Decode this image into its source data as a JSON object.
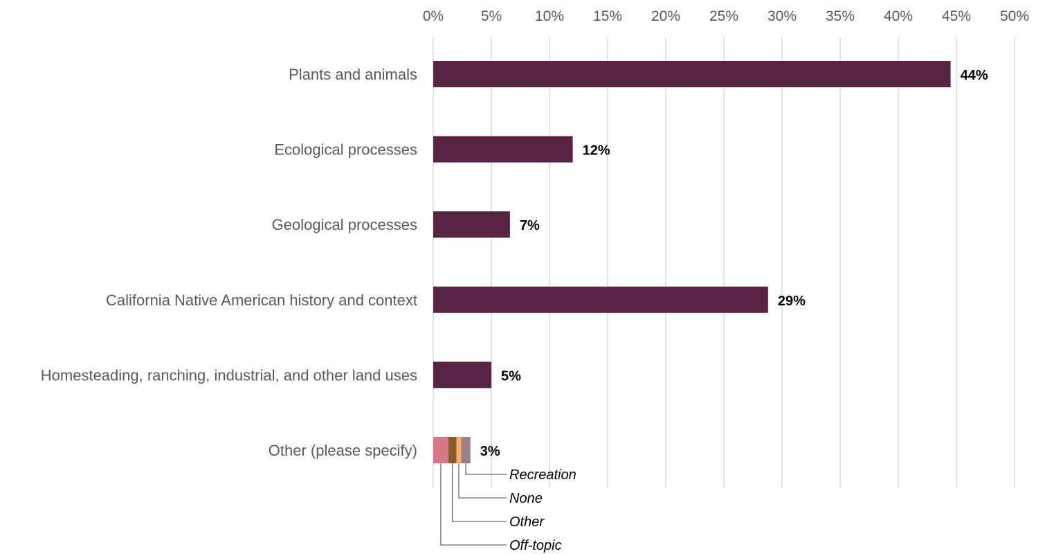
{
  "chart_data": {
    "type": "bar",
    "orientation": "horizontal",
    "title": "",
    "xlabel": "",
    "ylabel": "",
    "xlim": [
      0,
      50
    ],
    "x_ticks": [
      0,
      5,
      10,
      15,
      20,
      25,
      30,
      35,
      40,
      45,
      50
    ],
    "x_tick_labels": [
      "0%",
      "5%",
      "10%",
      "15%",
      "20%",
      "25%",
      "30%",
      "35%",
      "40%",
      "45%",
      "50%"
    ],
    "x_axis_position": "top",
    "grid": true,
    "categories": [
      "Plants and animals",
      "Ecological processes",
      "Geological processes",
      "California Native American history and context",
      "Homesteading, ranching, industrial, and other land uses",
      "Other (please specify)"
    ],
    "values": [
      44.5,
      12.0,
      6.6,
      28.8,
      5.0,
      3.2
    ],
    "data_labels": [
      "44%",
      "12%",
      "7%",
      "29%",
      "5%",
      "3%"
    ],
    "bar_color": "#582443",
    "other_breakdown": {
      "category": "Other (please specify)",
      "segments": [
        {
          "name": "Off-topic",
          "value": 1.3,
          "color": "#d87689"
        },
        {
          "name": "Other",
          "value": 0.7,
          "color": "#8b5a2b"
        },
        {
          "name": "None",
          "value": 0.4,
          "color": "#f7b167"
        },
        {
          "name": "Recreation",
          "value": 0.8,
          "color": "#9c7f8b"
        }
      ],
      "callout_order": [
        "Recreation",
        "None",
        "Other",
        "Off-topic"
      ]
    }
  }
}
